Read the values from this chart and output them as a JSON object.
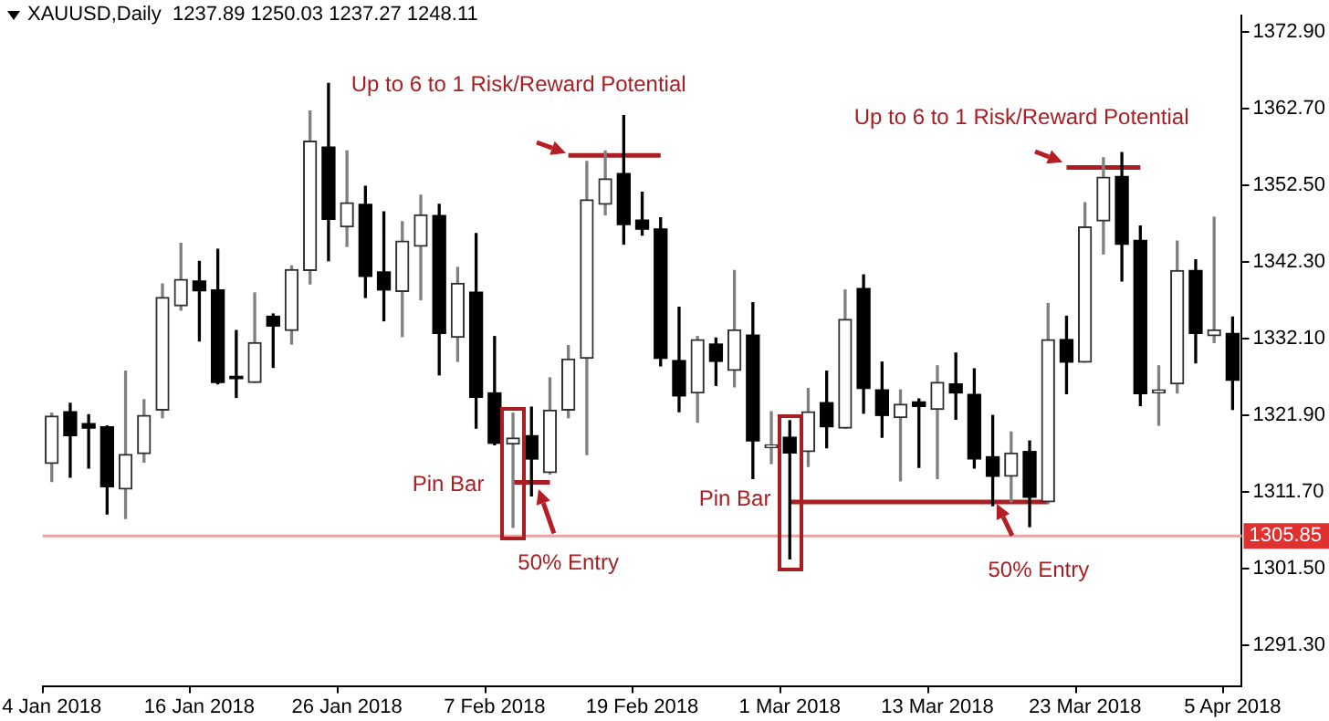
{
  "chart_data": {
    "type": "candlestick",
    "title": "XAUUSD,Daily  1237.89 1250.03 1237.27 1248.11",
    "categories": [
      "4 Jan 2018",
      null,
      null,
      null,
      null,
      null,
      null,
      null,
      "16 Jan 2018",
      null,
      null,
      null,
      null,
      null,
      null,
      null,
      "26 Jan 2018",
      null,
      null,
      null,
      null,
      null,
      null,
      null,
      "7 Feb 2018",
      null,
      null,
      null,
      null,
      null,
      null,
      null,
      "19 Feb 2018",
      null,
      null,
      null,
      null,
      null,
      null,
      null,
      "1 Mar 2018",
      null,
      null,
      null,
      null,
      null,
      null,
      null,
      "13 Mar 2018",
      null,
      null,
      null,
      null,
      null,
      null,
      null,
      "23 Mar 2018",
      null,
      null,
      null,
      null,
      null,
      null,
      null,
      "5 Apr 2018"
    ],
    "ohlc": [
      [
        1315.5,
        1322.2,
        1313.1,
        1321.8
      ],
      [
        1322.4,
        1323.5,
        1313.7,
        1319.2
      ],
      [
        1320.8,
        1322.0,
        1314.9,
        1320.2
      ],
      [
        1320.4,
        1320.5,
        1308.8,
        1312.4
      ],
      [
        1312.1,
        1327.8,
        1308.2,
        1316.7
      ],
      [
        1316.8,
        1324.0,
        1315.7,
        1321.9
      ],
      [
        1322.6,
        1339.4,
        1321.6,
        1337.6
      ],
      [
        1336.5,
        1344.8,
        1335.9,
        1340.0
      ],
      [
        1339.8,
        1342.4,
        1331.8,
        1338.5
      ],
      [
        1338.6,
        1344.0,
        1326.1,
        1326.3
      ],
      [
        1327.1,
        1333.2,
        1324.3,
        1326.8
      ],
      [
        1326.3,
        1338.2,
        1326.3,
        1331.6
      ],
      [
        1335.1,
        1335.4,
        1328.3,
        1333.8
      ],
      [
        1333.2,
        1341.8,
        1331.4,
        1341.3
      ],
      [
        1341.2,
        1362.4,
        1339.4,
        1358.4
      ],
      [
        1357.6,
        1366.1,
        1342.5,
        1348.0
      ],
      [
        1347.0,
        1357.1,
        1344.4,
        1350.2
      ],
      [
        1350.0,
        1352.4,
        1337.6,
        1340.4
      ],
      [
        1341.0,
        1349.0,
        1334.5,
        1338.6
      ],
      [
        1338.4,
        1347.7,
        1332.4,
        1345.1
      ],
      [
        1344.4,
        1351.2,
        1337.3,
        1348.6
      ],
      [
        1348.5,
        1350.0,
        1327.3,
        1332.8
      ],
      [
        1332.3,
        1341.6,
        1329.1,
        1339.5
      ],
      [
        1338.3,
        1346.1,
        1320.2,
        1324.3
      ],
      [
        1324.9,
        1332.4,
        1318.0,
        1318.2
      ],
      [
        1318.1,
        1322.2,
        1307.0,
        1318.9
      ],
      [
        1319.2,
        1323.0,
        1311.2,
        1316.1
      ],
      [
        1314.3,
        1326.9,
        1314.1,
        1322.6
      ],
      [
        1322.6,
        1331.2,
        1321.6,
        1329.4
      ],
      [
        1329.5,
        1355.7,
        1316.7,
        1350.6
      ],
      [
        1350.0,
        1357.1,
        1348.6,
        1353.4
      ],
      [
        1354.1,
        1361.8,
        1344.7,
        1347.3
      ],
      [
        1347.9,
        1351.6,
        1345.9,
        1346.7
      ],
      [
        1346.7,
        1348.2,
        1328.5,
        1329.5
      ],
      [
        1329.2,
        1336.3,
        1322.4,
        1324.5
      ],
      [
        1324.9,
        1332.4,
        1321.0,
        1332.0
      ],
      [
        1331.4,
        1332.2,
        1325.9,
        1329.1
      ],
      [
        1327.9,
        1341.2,
        1325.7,
        1333.3
      ],
      [
        1332.6,
        1336.9,
        1313.5,
        1318.5
      ],
      [
        1317.6,
        1322.4,
        1315.5,
        1318.0
      ],
      [
        1319.0,
        1321.2,
        1302.8,
        1316.9
      ],
      [
        1317.1,
        1325.5,
        1315.1,
        1322.4
      ],
      [
        1323.6,
        1327.8,
        1317.6,
        1320.4
      ],
      [
        1320.2,
        1338.6,
        1320.2,
        1334.7
      ],
      [
        1338.8,
        1340.6,
        1322.2,
        1325.5
      ],
      [
        1325.3,
        1329.0,
        1319.0,
        1321.9
      ],
      [
        1321.6,
        1325.3,
        1313.2,
        1323.4
      ],
      [
        1323.7,
        1324.1,
        1315.0,
        1323.1
      ],
      [
        1322.7,
        1328.5,
        1313.5,
        1326.3
      ],
      [
        1326.1,
        1330.2,
        1321.4,
        1324.9
      ],
      [
        1324.7,
        1328.1,
        1314.9,
        1316.1
      ],
      [
        1316.4,
        1321.9,
        1309.9,
        1313.8
      ],
      [
        1313.8,
        1319.7,
        1310.4,
        1316.9
      ],
      [
        1317.1,
        1318.5,
        1307.1,
        1311.0
      ],
      [
        1310.4,
        1336.8,
        1310.2,
        1332.0
      ],
      [
        1332.0,
        1335.1,
        1324.8,
        1329.0
      ],
      [
        1329.0,
        1350.2,
        1329.0,
        1347.0
      ],
      [
        1347.8,
        1356.2,
        1343.4,
        1353.6
      ],
      [
        1353.7,
        1356.9,
        1339.8,
        1344.7
      ],
      [
        1345.2,
        1347.1,
        1323.2,
        1324.8
      ],
      [
        1324.9,
        1328.5,
        1320.6,
        1325.3
      ],
      [
        1326.1,
        1345.1,
        1324.9,
        1341.2
      ],
      [
        1341.2,
        1342.6,
        1328.9,
        1332.8
      ],
      [
        1332.5,
        1348.3,
        1331.6,
        1333.3
      ],
      [
        1332.8,
        1335.0,
        1322.7,
        1326.6
      ]
    ],
    "series": [
      {
        "type": "line",
        "color": "#a81e22",
        "values": [
          null,
          null,
          null,
          null,
          null,
          null,
          null,
          null,
          null,
          null,
          null,
          null,
          null,
          null,
          null,
          null,
          null,
          null,
          null,
          null,
          null,
          null,
          null,
          null,
          null,
          null,
          null,
          null,
          1356.5,
          1356.5,
          1356.5,
          1356.5,
          1356.5,
          1356.5,
          null,
          null,
          null,
          null,
          null,
          null,
          null,
          null,
          null,
          null,
          null,
          null,
          null,
          null,
          null,
          null,
          null,
          null,
          null,
          null,
          null,
          null,
          null,
          null,
          null,
          null,
          null,
          null,
          null,
          null,
          null
        ]
      },
      {
        "type": "line",
        "color": "#a81e22",
        "values": [
          null,
          null,
          null,
          null,
          null,
          null,
          null,
          null,
          null,
          null,
          null,
          null,
          null,
          null,
          null,
          null,
          null,
          null,
          null,
          null,
          null,
          null,
          null,
          null,
          null,
          null,
          null,
          null,
          null,
          null,
          null,
          null,
          null,
          null,
          null,
          null,
          null,
          null,
          null,
          null,
          null,
          null,
          null,
          null,
          null,
          null,
          null,
          null,
          null,
          null,
          null,
          null,
          null,
          null,
          null,
          1354.9,
          1354.9,
          1354.9,
          1354.9,
          1354.9,
          null,
          null,
          null,
          null,
          null
        ]
      },
      {
        "type": "line",
        "color": "#a81e22",
        "values": [
          null,
          null,
          null,
          null,
          null,
          null,
          null,
          null,
          null,
          null,
          null,
          null,
          null,
          null,
          null,
          null,
          null,
          null,
          null,
          null,
          null,
          null,
          null,
          null,
          null,
          1313.0,
          1313.0,
          1313.0,
          null,
          null,
          null,
          null,
          null,
          null,
          null,
          null,
          null,
          null,
          null,
          null,
          null,
          null,
          null,
          null,
          null,
          null,
          null,
          null,
          null,
          null,
          null,
          null,
          null,
          null,
          null,
          null,
          null,
          null,
          null,
          null,
          null,
          null,
          null,
          null,
          null
        ]
      },
      {
        "type": "line",
        "color": "#a81e22",
        "values": [
          null,
          null,
          null,
          null,
          null,
          null,
          null,
          null,
          null,
          null,
          null,
          null,
          null,
          null,
          null,
          null,
          null,
          null,
          null,
          null,
          null,
          null,
          null,
          null,
          null,
          null,
          null,
          null,
          null,
          null,
          null,
          null,
          null,
          null,
          null,
          null,
          null,
          null,
          null,
          null,
          1310.4,
          1310.4,
          1310.4,
          1310.4,
          1310.4,
          1310.4,
          1310.4,
          1310.4,
          1310.4,
          1310.4,
          1310.4,
          1310.4,
          1310.4,
          1310.4,
          1310.4,
          null,
          null,
          null,
          null,
          null,
          null,
          null,
          null,
          null,
          null
        ]
      }
    ],
    "ylim": [
      1285.9,
      1375.1
    ],
    "yticks": [
      {
        "value": 1291.3,
        "label": "1291.30"
      },
      {
        "value": 1301.5,
        "label": "1301.50"
      },
      {
        "value": 1311.7,
        "label": "1311.70"
      },
      {
        "value": 1321.9,
        "label": "1321.90"
      },
      {
        "value": 1332.1,
        "label": "1332.10"
      },
      {
        "value": 1342.3,
        "label": "1342.30"
      },
      {
        "value": 1352.5,
        "label": "1352.50"
      },
      {
        "value": 1362.7,
        "label": "1362.70"
      },
      {
        "value": 1372.9,
        "label": "1372.90"
      }
    ],
    "ref_lines": [
      {
        "axis": "y",
        "value": 1305.85,
        "label": "1305.85",
        "color": "#e8a5a5"
      }
    ],
    "annotations": [
      "Up to 6 to 1 Risk/Reward Potential",
      "Up to 6 to 1 Risk/Reward Potential",
      "Pin Bar",
      "50% Entry",
      "Pin Bar",
      "50% Entry"
    ]
  }
}
